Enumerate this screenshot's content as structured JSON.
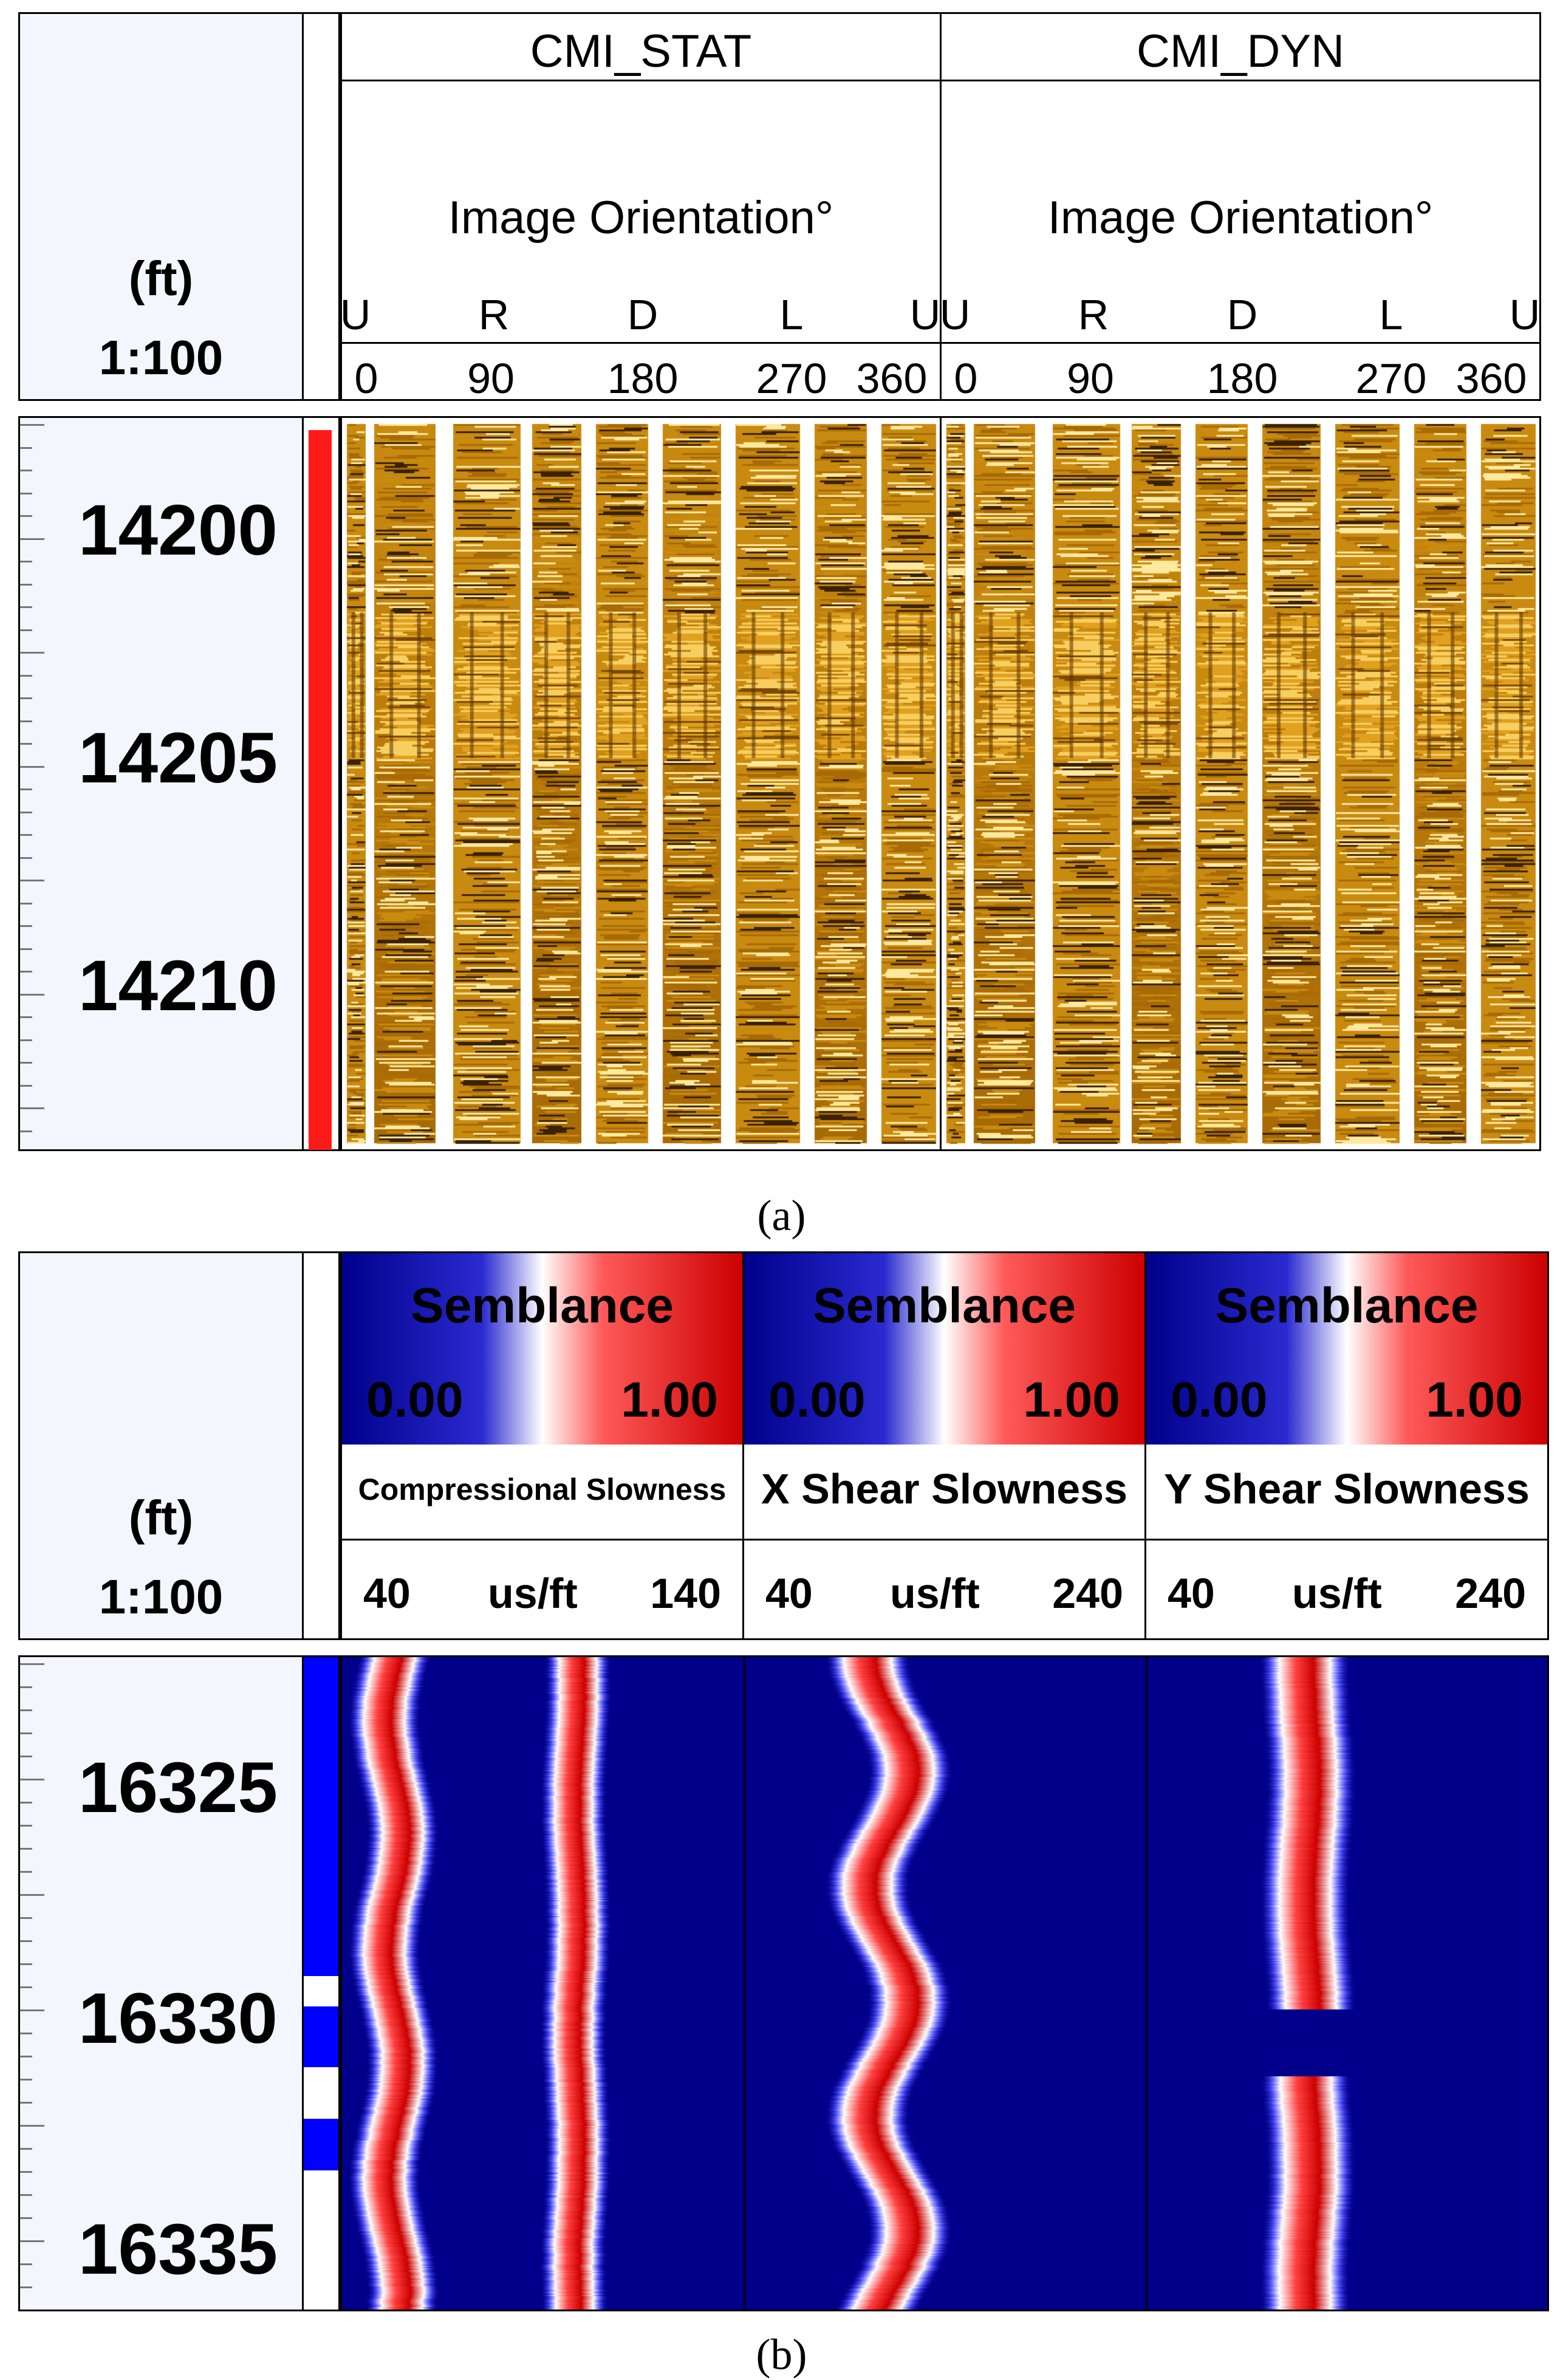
{
  "panel_a": {
    "depth_header": {
      "unit": "(ft)",
      "scale": "1:100"
    },
    "depth_labels": [
      "14200",
      "14205",
      "14210"
    ],
    "tracks": [
      {
        "title": "CMI_STAT",
        "subtitle": "Image Orientation°",
        "directions": [
          "U",
          "R",
          "D",
          "L",
          "U"
        ],
        "degrees": [
          "0",
          "90",
          "180",
          "270",
          "360"
        ]
      },
      {
        "title": "CMI_DYN",
        "subtitle": "Image Orientation°",
        "directions": [
          "U",
          "R",
          "D",
          "L",
          "U"
        ],
        "degrees": [
          "0",
          "90",
          "180",
          "270",
          "360"
        ]
      }
    ],
    "caption": "(a)",
    "colors": {
      "flag": "#ff1a1a",
      "image_dark": "#3a2200",
      "image_mid": "#c98a10",
      "image_light": "#ffe9a0"
    }
  },
  "panel_b": {
    "depth_header": {
      "unit": "(ft)",
      "scale": "1:100"
    },
    "depth_labels": [
      "16325",
      "16330",
      "16335"
    ],
    "tracks": [
      {
        "legend_title": "Semblance",
        "legend_min": "0.00",
        "legend_max": "1.00",
        "name": "Compressional Slowness",
        "scale_min": "40",
        "scale_unit": "us/ft",
        "scale_max": "140"
      },
      {
        "legend_title": "Semblance",
        "legend_min": "0.00",
        "legend_max": "1.00",
        "name": "X Shear Slowness",
        "scale_min": "40",
        "scale_unit": "us/ft",
        "scale_max": "240"
      },
      {
        "legend_title": "Semblance",
        "legend_min": "0.00",
        "legend_max": "1.00",
        "name": "Y Shear Slowness",
        "scale_min": "40",
        "scale_unit": "us/ft",
        "scale_max": "240"
      }
    ],
    "caption": "(b)",
    "colors": {
      "low": "#00008b",
      "mid": "#ffffff",
      "high": "#cc0000",
      "flag": "#0000ff"
    }
  }
}
